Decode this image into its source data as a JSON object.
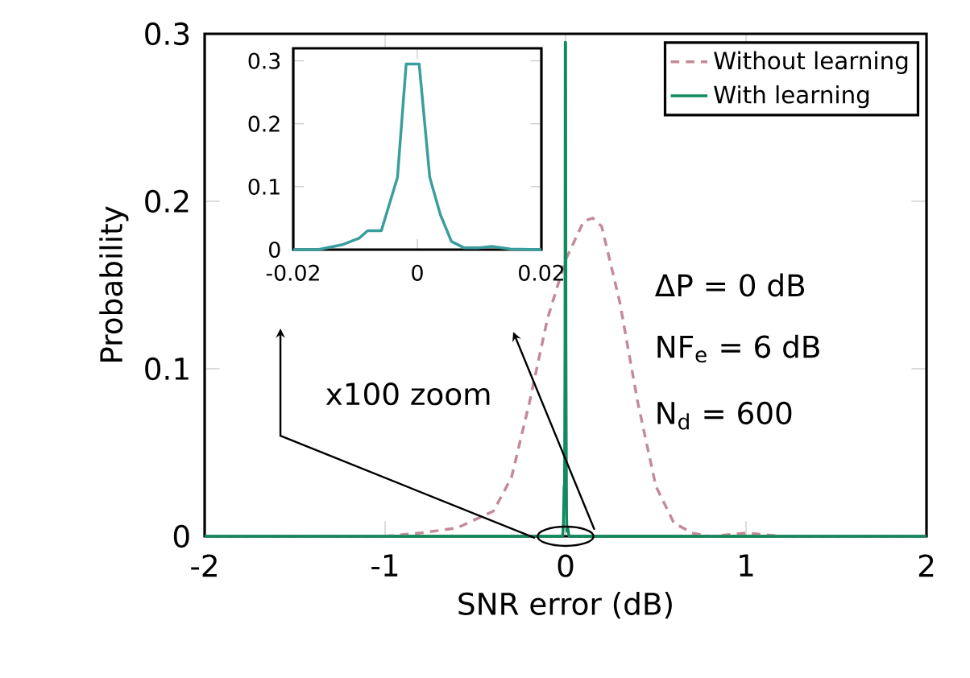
{
  "chart_data": [
    {
      "type": "line",
      "xlabel": "SNR error (dB)",
      "ylabel": "Probability",
      "xlim": [
        -2,
        2
      ],
      "ylim": [
        0,
        0.3
      ],
      "xticks": [
        -2,
        -1,
        0,
        1,
        2
      ],
      "yticks": [
        0,
        0.1,
        0.2,
        0.3
      ],
      "legend": "top right",
      "annotations": [
        "x100 zoom",
        "ΔP = 0 dB",
        "NF$_{e}$ = 6 dB",
        "N$_{d}$ = 600"
      ],
      "series": [
        {
          "name": "Without learning",
          "color": "#c48a98",
          "line_style": "dashed",
          "x": [
            -2,
            -1.5,
            -1,
            -0.8,
            -0.6,
            -0.4,
            -0.3,
            -0.2,
            -0.1,
            0,
            0.1,
            0.15,
            0.2,
            0.3,
            0.4,
            0.5,
            0.6,
            0.7,
            0.8,
            1,
            1.2,
            1.5,
            2
          ],
          "values": [
            0,
            0,
            0,
            0.002,
            0.005,
            0.015,
            0.035,
            0.08,
            0.13,
            0.165,
            0.188,
            0.19,
            0.185,
            0.14,
            0.08,
            0.03,
            0.008,
            0.002,
            0,
            0.002,
            0,
            0,
            0
          ]
        },
        {
          "name": "With learning",
          "color": "#118a5e",
          "line_style": "solid",
          "x": [
            -2,
            -0.016,
            -0.012,
            -0.008,
            -0.0058,
            -0.0032,
            -0.0018,
            0.0003,
            0.002,
            0.0037,
            0.0055,
            0.0075,
            0.012,
            0.02,
            2
          ],
          "values": [
            0,
            0,
            0.008,
            0.03,
            0.03,
            0.115,
            0.295,
            0.295,
            0.115,
            0.056,
            0.013,
            0.003,
            0.005,
            0,
            0
          ]
        }
      ]
    },
    {
      "type": "line",
      "xlim": [
        -0.02,
        0.02
      ],
      "ylim": [
        0,
        0.32
      ],
      "xticks": [
        -0.02,
        0,
        0.02
      ],
      "yticks": [
        0,
        0.1,
        0.2,
        0.3
      ],
      "series": [
        {
          "color": "#3a9e9e",
          "line_style": "solid",
          "x": [
            -0.02,
            -0.016,
            -0.012,
            -0.0094,
            -0.008,
            -0.0058,
            -0.0032,
            -0.0018,
            0.0003,
            0.002,
            0.0037,
            0.0055,
            0.0075,
            0.01,
            0.012,
            0.015,
            0.02
          ],
          "values": [
            0,
            0,
            0.008,
            0.018,
            0.03,
            0.03,
            0.115,
            0.295,
            0.295,
            0.115,
            0.056,
            0.013,
            0.003,
            0.003,
            0.005,
            0.001,
            0
          ]
        }
      ]
    }
  ]
}
